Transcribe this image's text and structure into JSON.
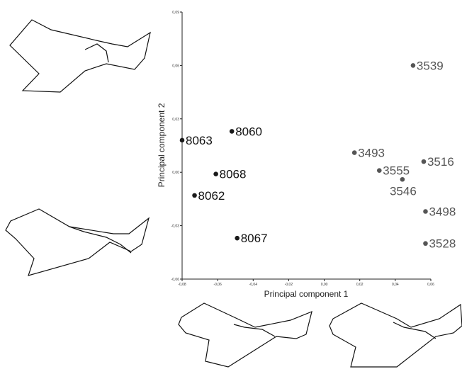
{
  "chart_data": {
    "type": "scatter",
    "xlabel": "Principal component 1",
    "ylabel": "Principal component 2",
    "xlim": [
      -0.08,
      0.06
    ],
    "ylim": [
      -0.06,
      0.09
    ],
    "x_ticks": [
      "-0,08",
      "-0,06",
      "-0,04",
      "-0,02",
      "0,00",
      "0,02",
      "0,04",
      "0,06"
    ],
    "y_ticks": [
      "0,09",
      "0,06",
      "0,03",
      "0,00",
      "-0,03",
      "-0,06"
    ],
    "grid": false,
    "series": [
      {
        "color": "#1a1a1a",
        "points": [
          {
            "label": "8063",
            "x": -0.08,
            "y": 0.018
          },
          {
            "label": "8060",
            "x": -0.052,
            "y": 0.023
          },
          {
            "label": "8068",
            "x": -0.061,
            "y": -0.001
          },
          {
            "label": "8062",
            "x": -0.073,
            "y": -0.013
          },
          {
            "label": "8067",
            "x": -0.049,
            "y": -0.037
          }
        ]
      },
      {
        "color": "#555555",
        "points": [
          {
            "label": "3539",
            "x": 0.05,
            "y": 0.06
          },
          {
            "label": "3493",
            "x": 0.017,
            "y": 0.011
          },
          {
            "label": "3555",
            "x": 0.031,
            "y": 0.001
          },
          {
            "label": "3516",
            "x": 0.056,
            "y": 0.006
          },
          {
            "label": "3546",
            "x": 0.044,
            "y": -0.004
          },
          {
            "label": "3498",
            "x": 0.057,
            "y": -0.022
          },
          {
            "label": "3528",
            "x": 0.057,
            "y": -0.04
          }
        ]
      }
    ]
  },
  "shape_icons": [
    "fish-outline-icon",
    "fish-outline-icon",
    "fish-outline-icon",
    "fish-outline-icon"
  ]
}
